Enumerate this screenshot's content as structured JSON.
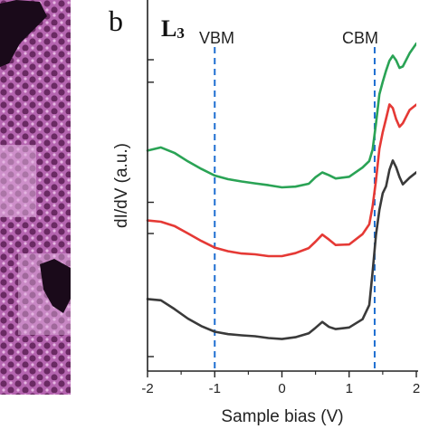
{
  "panel": {
    "letter": "b",
    "label": "L",
    "label_sub": "3"
  },
  "annotations": {
    "vbm": "VBM",
    "cbm": "CBM"
  },
  "colors": {
    "green": "#2aa355",
    "red": "#e53935",
    "black": "#3a3a3a",
    "dashed": "#1f6fd1",
    "stm_dark": "#5a1a52",
    "stm_light": "#e8b8e6"
  },
  "chart_data": {
    "type": "line",
    "xlabel": "Sample bias (V)",
    "ylabel": "dI/dV (a.u.)",
    "xlim": [
      -2,
      2
    ],
    "xticks": [
      "-2",
      "-1",
      "0",
      "1",
      "2"
    ],
    "yticks_labeled": false,
    "vlines": [
      {
        "label": "VBM",
        "x": -1.0
      },
      {
        "label": "CBM",
        "x": 1.38
      }
    ],
    "y_units": "arbitrary offset units",
    "series": [
      {
        "color": "green",
        "x": [
          -2.0,
          -1.8,
          -1.6,
          -1.4,
          -1.2,
          -1.0,
          -0.8,
          -0.6,
          -0.4,
          -0.2,
          0.0,
          0.2,
          0.4,
          0.5,
          0.6,
          0.7,
          0.8,
          1.0,
          1.2,
          1.3,
          1.35,
          1.4,
          1.45,
          1.5,
          1.55,
          1.6,
          1.65,
          1.7,
          1.75,
          1.8,
          1.9,
          2.0
        ],
        "y": [
          9.1,
          9.2,
          8.95,
          8.6,
          8.3,
          8.0,
          7.8,
          7.65,
          7.55,
          7.5,
          7.45,
          7.5,
          7.6,
          7.85,
          8.05,
          7.95,
          7.85,
          7.95,
          8.35,
          8.6,
          9.1,
          10.3,
          11.7,
          12.3,
          12.8,
          13.2,
          13.4,
          13.2,
          12.9,
          13.0,
          13.6,
          14.0
        ]
      },
      {
        "color": "red",
        "x": [
          -2.0,
          -1.8,
          -1.6,
          -1.4,
          -1.2,
          -1.0,
          -0.8,
          -0.6,
          -0.4,
          -0.2,
          0.0,
          0.2,
          0.4,
          0.5,
          0.6,
          0.7,
          0.8,
          1.0,
          1.2,
          1.3,
          1.35,
          1.4,
          1.45,
          1.5,
          1.55,
          1.6,
          1.65,
          1.7,
          1.75,
          1.8,
          1.9,
          2.0
        ],
        "y": [
          5.9,
          5.8,
          5.6,
          5.3,
          5.0,
          4.7,
          4.5,
          4.35,
          4.3,
          4.25,
          4.3,
          4.45,
          4.65,
          4.9,
          5.2,
          5.0,
          4.8,
          4.85,
          5.3,
          5.7,
          6.5,
          7.7,
          9.2,
          10.0,
          10.6,
          11.2,
          11.0,
          10.5,
          10.2,
          10.4,
          11.0,
          11.2
        ]
      },
      {
        "color": "black",
        "x": [
          -2.0,
          -1.8,
          -1.6,
          -1.4,
          -1.2,
          -1.0,
          -0.8,
          -0.6,
          -0.4,
          -0.2,
          0.0,
          0.2,
          0.4,
          0.5,
          0.6,
          0.7,
          0.8,
          1.0,
          1.2,
          1.3,
          1.35,
          1.4,
          1.45,
          1.5,
          1.55,
          1.6,
          1.65,
          1.7,
          1.75,
          1.8,
          1.9,
          2.0
        ],
        "y": [
          2.3,
          2.2,
          1.8,
          1.4,
          1.1,
          0.85,
          0.7,
          0.6,
          0.55,
          0.5,
          0.5,
          0.6,
          0.75,
          0.95,
          1.2,
          1.0,
          0.95,
          1.05,
          1.4,
          2.0,
          3.5,
          5.2,
          6.4,
          7.2,
          7.5,
          8.2,
          8.6,
          8.3,
          7.9,
          7.6,
          7.9,
          8.1
        ]
      }
    ],
    "ylim": [
      -1,
      15.5
    ]
  }
}
